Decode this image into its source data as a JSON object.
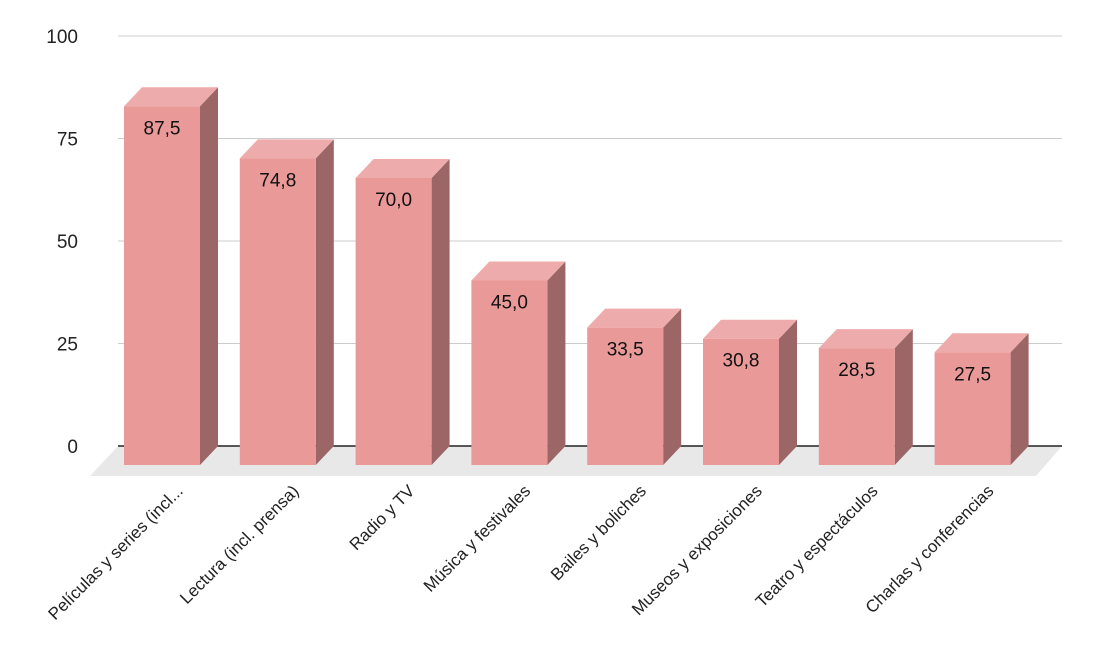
{
  "chart_data": {
    "type": "bar",
    "style": "3d-columns",
    "categories": [
      "Películas y series (incl...",
      "Lectura (incl. prensa)",
      "Radio y TV",
      "Música y festivales",
      "Bailes y boliches",
      "Museos y exposiciones",
      "Teatro y espectáculos",
      "Charlas y conferencias"
    ],
    "values": [
      87.5,
      74.8,
      70.0,
      45.0,
      33.5,
      30.8,
      28.5,
      27.5
    ],
    "value_labels": [
      "87,5",
      "74,8",
      "70,0",
      "45,0",
      "33,5",
      "30,8",
      "28,5",
      "27,5"
    ],
    "y_ticks": [
      0,
      25,
      50,
      75,
      100
    ],
    "y_tick_labels": [
      "0",
      "25",
      "50",
      "75",
      "100"
    ],
    "ylim": [
      0,
      100
    ],
    "grid": true,
    "legend": "none",
    "colors": {
      "bar_front": "#ea9999",
      "bar_top": "#eeabab",
      "bar_side": "#9c6666",
      "floor": "#e8e8e8",
      "gridline": "#cccccc",
      "baseline": "#222222"
    }
  }
}
